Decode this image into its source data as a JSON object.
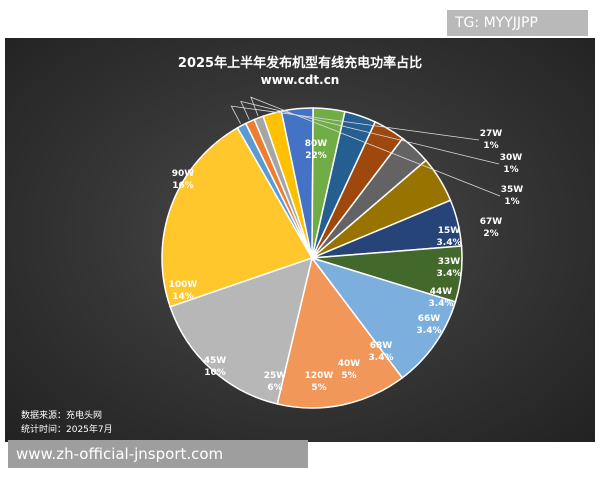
{
  "overlay_tag": "TG: MYYJJPP",
  "watermark": "www.zh-official-jnsport.com",
  "chart_data": {
    "type": "pie",
    "title": "2025年上半年发布机型有线充电功率占比",
    "subtitle": "www.cdt.cn",
    "slices": [
      {
        "name": "80W",
        "pct": "22%",
        "value": 22,
        "color": "#ffc72c"
      },
      {
        "name": "27W",
        "pct": "1%",
        "value": 1,
        "color": "#5b9bd5"
      },
      {
        "name": "30W",
        "pct": "1%",
        "value": 1,
        "color": "#ed7d31"
      },
      {
        "name": "35W",
        "pct": "1%",
        "value": 1,
        "color": "#a5a5a5"
      },
      {
        "name": "67W",
        "pct": "2%",
        "value": 2,
        "color": "#ffc000"
      },
      {
        "name": "15W",
        "pct": "3.4%",
        "value": 3.4,
        "color": "#4472c4"
      },
      {
        "name": "33W",
        "pct": "3.4%",
        "value": 3.4,
        "color": "#70ad47"
      },
      {
        "name": "44W",
        "pct": "3.4%",
        "value": 3.4,
        "color": "#255e91"
      },
      {
        "name": "66W",
        "pct": "3.4%",
        "value": 3.4,
        "color": "#9e480e"
      },
      {
        "name": "68W",
        "pct": "3.4%",
        "value": 3.4,
        "color": "#636363"
      },
      {
        "name": "40W",
        "pct": "5%",
        "value": 5,
        "color": "#997300"
      },
      {
        "name": "120W",
        "pct": "5%",
        "value": 5,
        "color": "#264478"
      },
      {
        "name": "25W",
        "pct": "6%",
        "value": 6,
        "color": "#43682b"
      },
      {
        "name": "45W",
        "pct": "10%",
        "value": 10,
        "color": "#7cafdd"
      },
      {
        "name": "100W",
        "pct": "14%",
        "value": 14,
        "color": "#f1975a"
      },
      {
        "name": "90W",
        "pct": "16%",
        "value": 16,
        "color": "#b7b7b7"
      }
    ],
    "source_note": [
      "数据来源：充电头网",
      "统计时间：2025年7月"
    ]
  }
}
